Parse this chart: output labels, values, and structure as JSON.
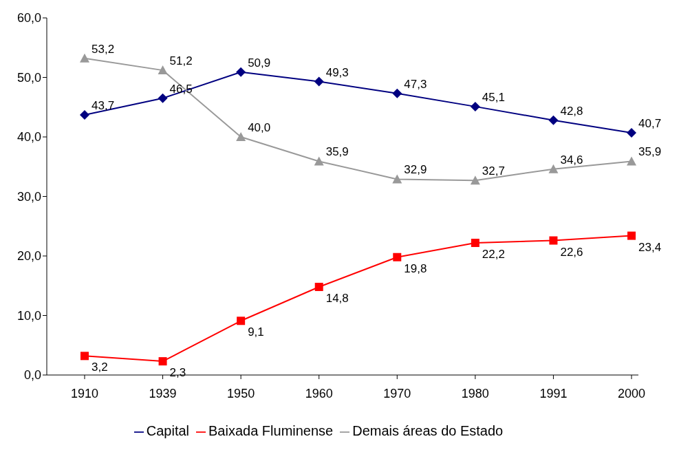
{
  "chart_data": {
    "type": "line",
    "categories": [
      "1910",
      "1939",
      "1950",
      "1960",
      "1970",
      "1980",
      "1991",
      "2000"
    ],
    "series": [
      {
        "name": "Capital",
        "color": "#000080",
        "marker": "diamond",
        "values": [
          43.7,
          46.5,
          50.9,
          49.3,
          47.3,
          45.1,
          42.8,
          40.7
        ],
        "value_labels": [
          "43,7",
          "46,5",
          "50,9",
          "49,3",
          "47,3",
          "45,1",
          "42,8",
          "40,7"
        ]
      },
      {
        "name": "Baixada Fluminense",
        "color": "#ff0000",
        "marker": "square",
        "values": [
          3.2,
          2.3,
          9.1,
          14.8,
          19.8,
          22.2,
          22.6,
          23.4
        ],
        "value_labels": [
          "3,2",
          "2,3",
          "9,1",
          "14,8",
          "19,8",
          "22,2",
          "22,6",
          "23,4"
        ]
      },
      {
        "name": "Demais áreas do Estado",
        "color": "#999999",
        "marker": "triangle",
        "values": [
          53.2,
          51.2,
          40.0,
          35.9,
          32.9,
          32.7,
          34.6,
          35.9
        ],
        "value_labels": [
          "53,2",
          "51,2",
          "40,0",
          "35,9",
          "32,9",
          "32,7",
          "34,6",
          "35,9"
        ]
      }
    ],
    "ylim": [
      0,
      60
    ],
    "yticks": [
      {
        "value": 0,
        "label": "0,0"
      },
      {
        "value": 10,
        "label": "10,0"
      },
      {
        "value": 20,
        "label": "20,0"
      },
      {
        "value": 30,
        "label": "30,0"
      },
      {
        "value": 40,
        "label": "40,0"
      },
      {
        "value": 50,
        "label": "50,0"
      },
      {
        "value": 60,
        "label": "60,0"
      }
    ],
    "grid": false,
    "legend": "bottom",
    "line_style": "solid"
  }
}
